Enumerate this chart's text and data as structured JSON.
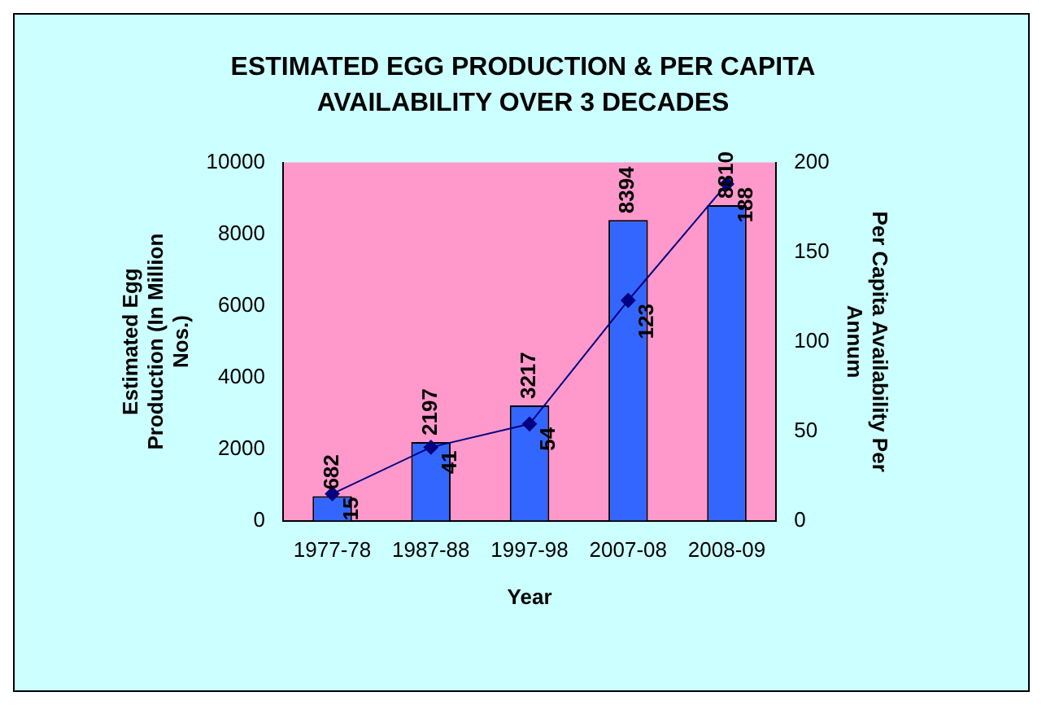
{
  "chart_data": {
    "type": "bar",
    "title": "ESTIMATED EGG PRODUCTION & PER CAPITA AVAILABILITY OVER 3 DECADES",
    "xlabel": "Year",
    "ylabel": "Estimated Egg Production (In Million Nos.)",
    "y2label": "Per Capita Availability Per Annum",
    "categories": [
      "1977-78",
      "1987-88",
      "1997-98",
      "2007-08",
      "2008-09"
    ],
    "series": [
      {
        "color": "#3366ff",
        "values": [
          682,
          2197,
          3217,
          8394,
          8810
        ]
      },
      {
        "type": "line",
        "axis": "y2",
        "color": "#000080",
        "values": [
          15,
          41,
          54,
          123,
          188
        ],
        "marker": "diamond",
        "line_style": "solid"
      }
    ],
    "ylim": [
      0,
      10000
    ],
    "yticks": [
      0,
      2000,
      4000,
      6000,
      8000,
      10000
    ],
    "y2lim": [
      0,
      200
    ],
    "y2ticks": [
      0,
      50,
      100,
      150,
      200
    ],
    "data_labels": true,
    "grid": false,
    "legend": false
  }
}
